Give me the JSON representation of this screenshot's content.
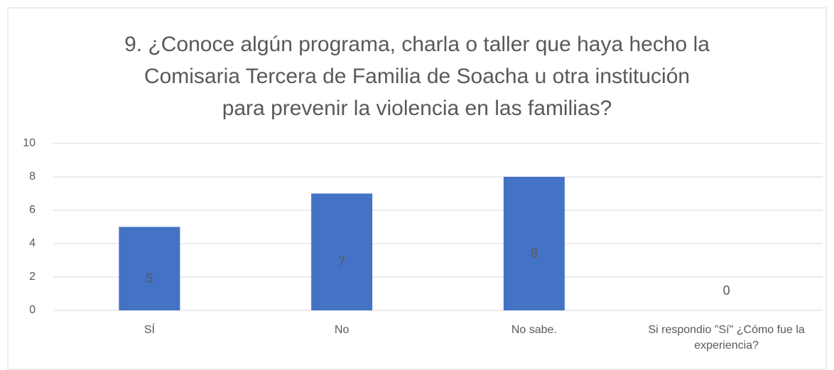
{
  "chart_data": {
    "type": "bar",
    "title": [
      "9. ¿Conoce algún programa, charla o taller que haya hecho la",
      "Comisaria Tercera de Familia de Soacha u otra institución",
      "para prevenir la violencia en las familias?"
    ],
    "categories": [
      "SÍ",
      "No",
      "No sabe.",
      "Si respondio \"Sí\" ¿Cómo fue la experiencia?"
    ],
    "values": [
      5,
      7,
      8,
      0
    ],
    "color": "#4472c4",
    "ylim": [
      0,
      10
    ],
    "yticks": [
      0,
      2,
      4,
      6,
      8,
      10
    ],
    "grid": true
  }
}
